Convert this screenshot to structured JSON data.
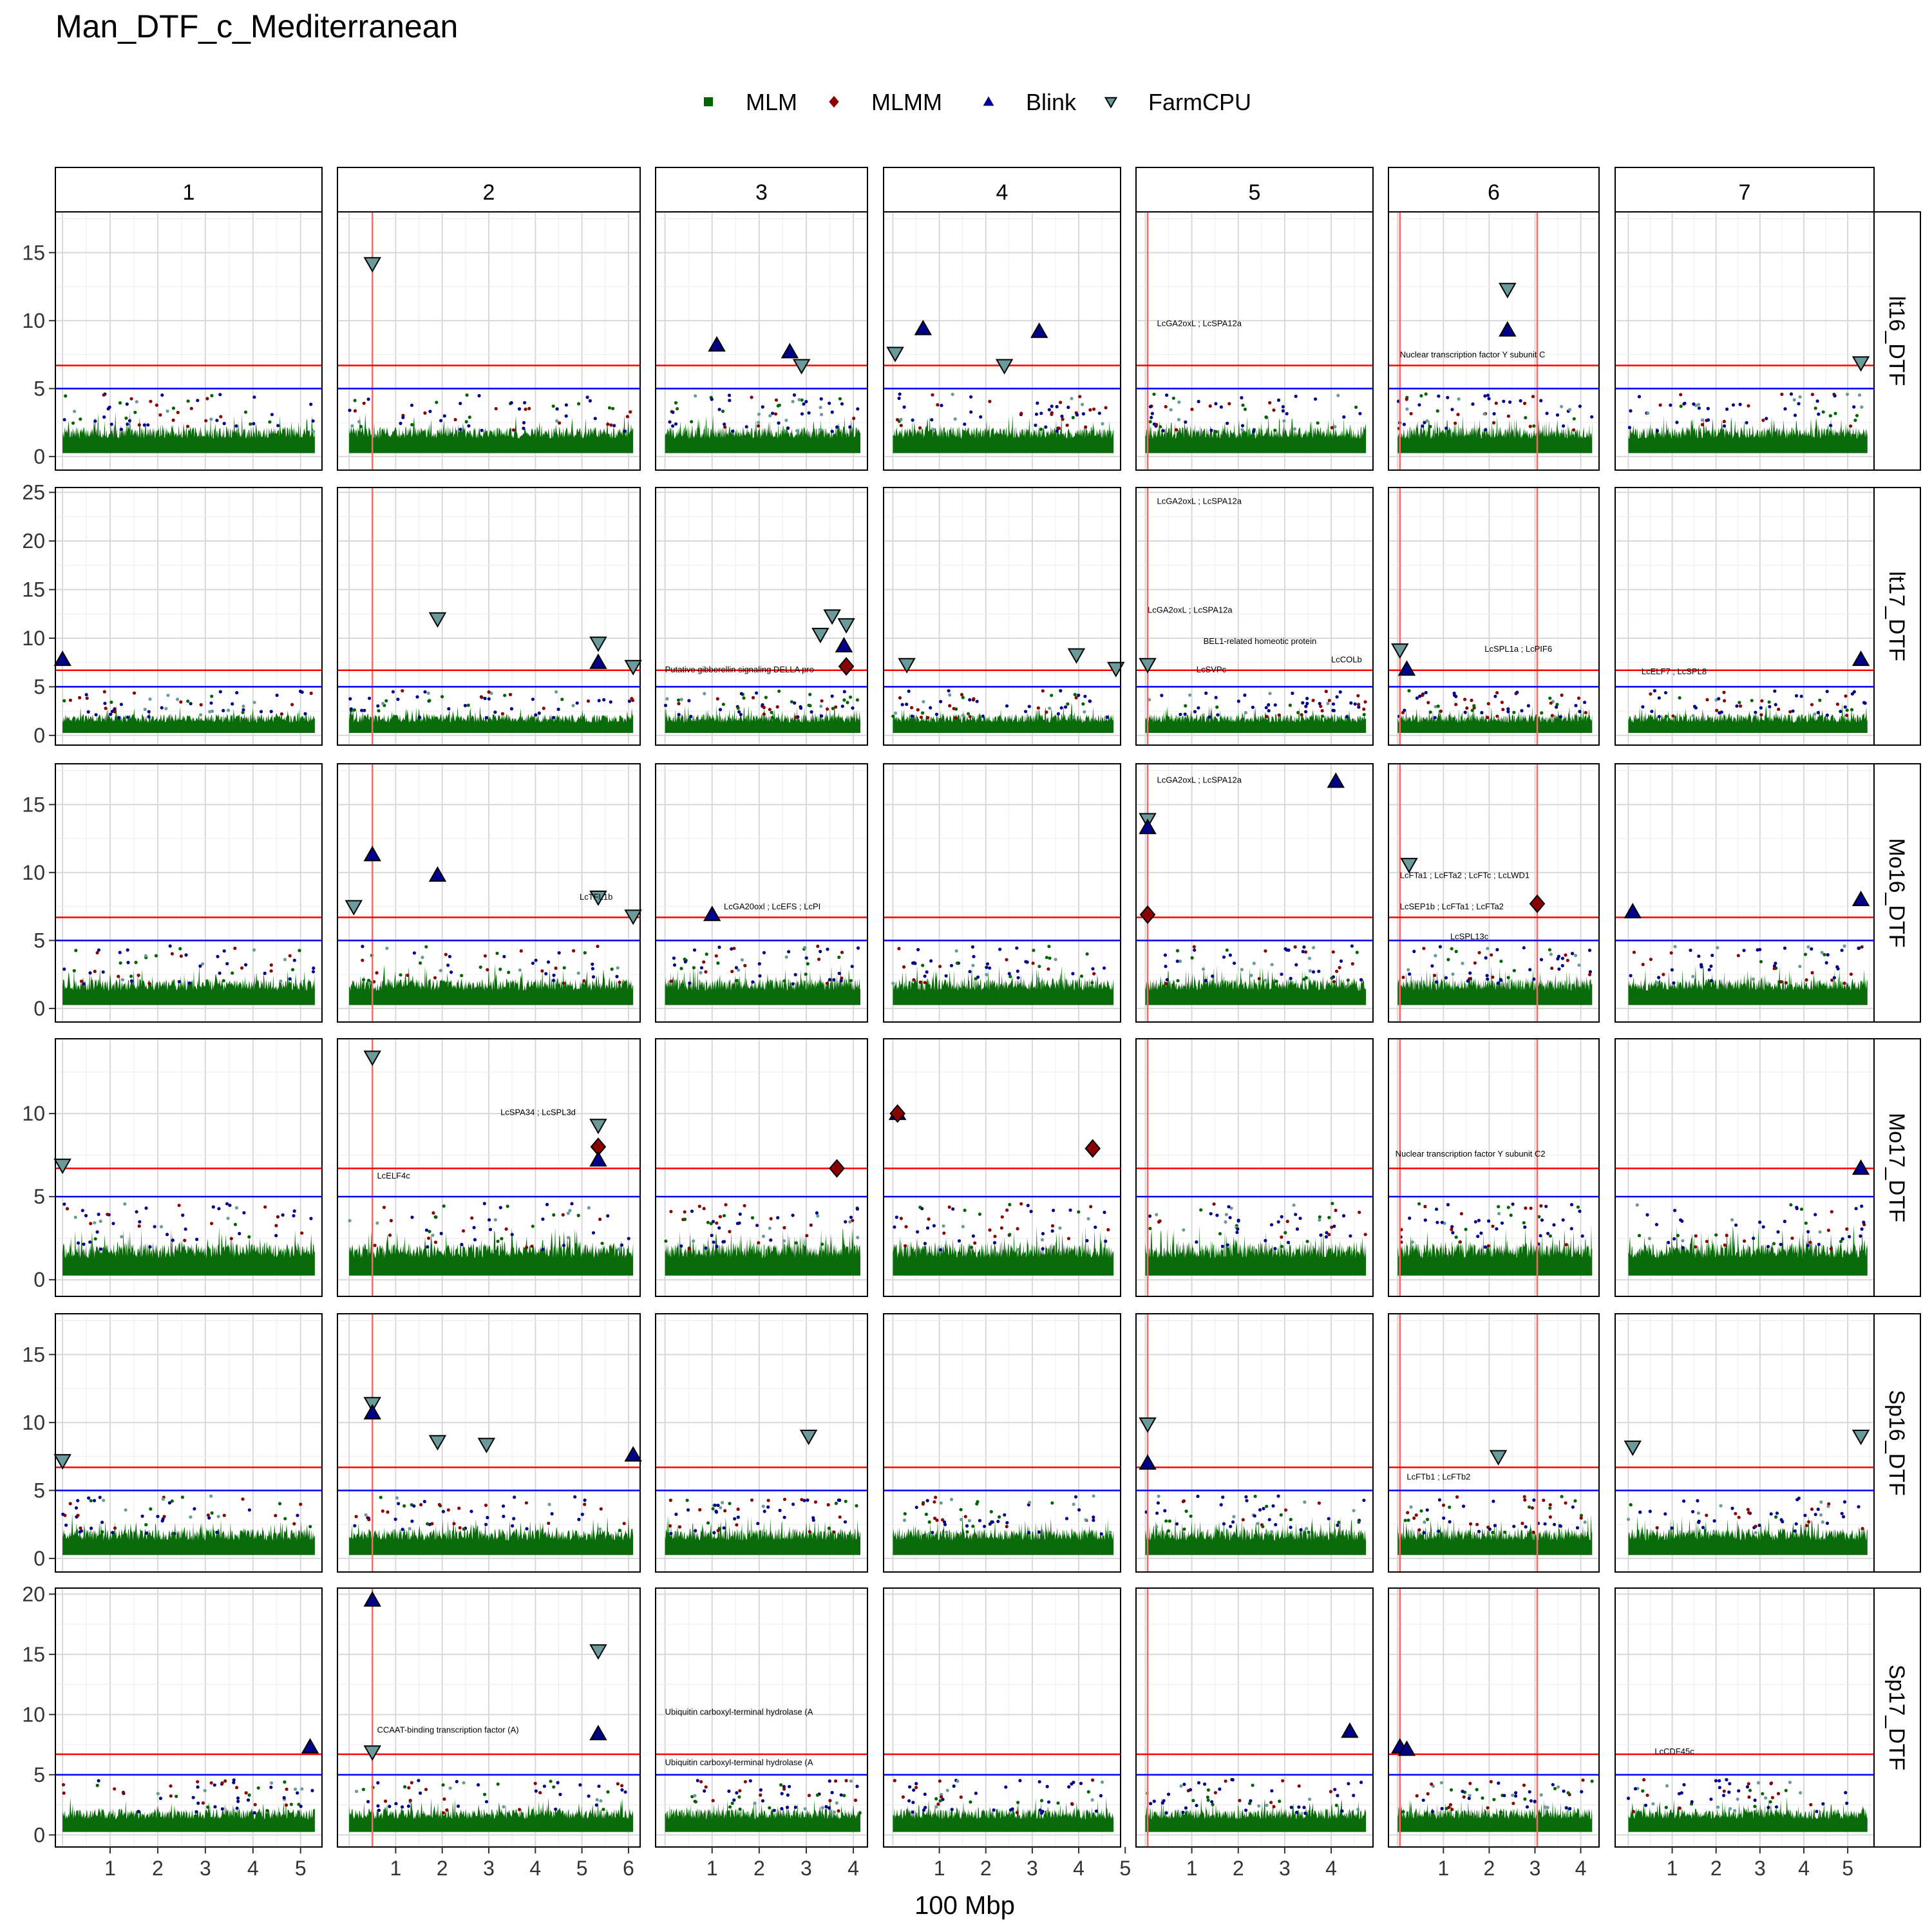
{
  "title": "Man_DTF_c_Mediterranean",
  "chart_data": {
    "type": "scatter",
    "title": "Man_DTF_c_Mediterranean",
    "xlabel": "100 Mbp",
    "ylabel": "",
    "grid": true,
    "legend_position": "top",
    "threshold_red": 6.7,
    "threshold_blue": 5,
    "chromosomes": [
      {
        "label": "1",
        "xlim": [
          -0.15,
          5.45
        ],
        "ticks": [
          1,
          2,
          3,
          4,
          5
        ]
      },
      {
        "label": "2",
        "xlim": [
          -0.25,
          6.25
        ],
        "ticks": [
          1,
          2,
          3,
          4,
          5,
          6
        ]
      },
      {
        "label": "3",
        "xlim": [
          -0.2,
          4.3
        ],
        "ticks": [
          1,
          2,
          3,
          4
        ]
      },
      {
        "label": "4",
        "xlim": [
          -0.2,
          4.9
        ],
        "ticks": [
          1,
          2,
          3,
          4,
          5
        ]
      },
      {
        "label": "5",
        "xlim": [
          -0.2,
          4.9
        ],
        "ticks": [
          1,
          2,
          3,
          4
        ]
      },
      {
        "label": "6",
        "xlim": [
          -0.2,
          4.4
        ],
        "ticks": [
          1,
          2,
          3,
          4
        ]
      },
      {
        "label": "7",
        "xlim": [
          -0.3,
          5.6
        ],
        "ticks": [
          1,
          2,
          3,
          4,
          5
        ]
      }
    ],
    "traits": [
      {
        "label": "lt16_DTF",
        "ylim": [
          -1,
          18
        ],
        "ticks": [
          0,
          5,
          10,
          15
        ]
      },
      {
        "label": "lt17_DTF",
        "ylim": [
          -1,
          25.5
        ],
        "ticks": [
          0,
          5,
          10,
          15,
          20,
          25
        ]
      },
      {
        "label": "Mo16_DTF",
        "ylim": [
          -1,
          18
        ],
        "ticks": [
          0,
          5,
          10,
          15
        ]
      },
      {
        "label": "Mo17_DTF",
        "ylim": [
          -1,
          14.5
        ],
        "ticks": [
          0,
          5,
          10
        ]
      },
      {
        "label": "Sp16_DTF",
        "ylim": [
          -1,
          18
        ],
        "ticks": [
          0,
          5,
          10,
          15
        ]
      },
      {
        "label": "Sp17_DTF",
        "ylim": [
          -1,
          20.5
        ],
        "ticks": [
          0,
          5,
          10,
          15,
          20
        ]
      }
    ],
    "series": [
      {
        "name": "MLM",
        "shape": "square",
        "color": "#006400"
      },
      {
        "name": "MLMM",
        "shape": "diamond",
        "color": "#8b0000"
      },
      {
        "name": "Blink",
        "shape": "triangle-up",
        "color": "#00008b"
      },
      {
        "name": "FarmCPU",
        "shape": "triangle-down",
        "color": "#6b9a9a"
      }
    ],
    "candidate_lines": [
      {
        "trait": 0,
        "chrom": 1,
        "x": 0.5
      },
      {
        "trait": 0,
        "chrom": 4,
        "x": 0.05
      },
      {
        "trait": 0,
        "chrom": 5,
        "x": 0.05
      },
      {
        "trait": 0,
        "chrom": 5,
        "x": 3.05
      },
      {
        "trait": 1,
        "chrom": 1,
        "x": 0.5
      },
      {
        "trait": 1,
        "chrom": 4,
        "x": 0.05
      },
      {
        "trait": 1,
        "chrom": 5,
        "x": 0.05
      },
      {
        "trait": 1,
        "chrom": 5,
        "x": 3.05
      },
      {
        "trait": 2,
        "chrom": 1,
        "x": 0.5
      },
      {
        "trait": 2,
        "chrom": 4,
        "x": 0.05
      },
      {
        "trait": 2,
        "chrom": 5,
        "x": 0.05
      },
      {
        "trait": 2,
        "chrom": 5,
        "x": 3.05
      },
      {
        "trait": 3,
        "chrom": 1,
        "x": 0.5
      },
      {
        "trait": 3,
        "chrom": 4,
        "x": 0.05
      },
      {
        "trait": 3,
        "chrom": 5,
        "x": 0.05
      },
      {
        "trait": 3,
        "chrom": 5,
        "x": 3.05
      },
      {
        "trait": 4,
        "chrom": 1,
        "x": 0.5
      },
      {
        "trait": 4,
        "chrom": 4,
        "x": 0.05
      },
      {
        "trait": 4,
        "chrom": 5,
        "x": 0.05
      },
      {
        "trait": 4,
        "chrom": 5,
        "x": 3.05
      },
      {
        "trait": 5,
        "chrom": 1,
        "x": 0.5
      },
      {
        "trait": 5,
        "chrom": 4,
        "x": 0.05
      },
      {
        "trait": 5,
        "chrom": 5,
        "x": 0.05
      },
      {
        "trait": 5,
        "chrom": 5,
        "x": 3.05
      }
    ],
    "significant_points": [
      {
        "trait": 0,
        "chrom": 1,
        "x": 0.5,
        "y": 14.2,
        "series": "FarmCPU"
      },
      {
        "trait": 0,
        "chrom": 2,
        "x": 1.1,
        "y": 8.2,
        "series": "Blink"
      },
      {
        "trait": 0,
        "chrom": 2,
        "x": 2.65,
        "y": 7.7,
        "series": "Blink"
      },
      {
        "trait": 0,
        "chrom": 2,
        "x": 2.9,
        "y": 6.7,
        "series": "FarmCPU"
      },
      {
        "trait": 0,
        "chrom": 3,
        "x": 0.05,
        "y": 7.6,
        "series": "FarmCPU"
      },
      {
        "trait": 0,
        "chrom": 3,
        "x": 0.65,
        "y": 9.4,
        "series": "Blink"
      },
      {
        "trait": 0,
        "chrom": 3,
        "x": 2.4,
        "y": 6.7,
        "series": "FarmCPU"
      },
      {
        "trait": 0,
        "chrom": 3,
        "x": 3.15,
        "y": 9.2,
        "series": "Blink"
      },
      {
        "trait": 0,
        "chrom": 5,
        "x": 2.4,
        "y": 12.3,
        "series": "FarmCPU"
      },
      {
        "trait": 0,
        "chrom": 5,
        "x": 2.4,
        "y": 9.3,
        "series": "Blink"
      },
      {
        "trait": 0,
        "chrom": 6,
        "x": 5.3,
        "y": 6.9,
        "series": "FarmCPU"
      },
      {
        "trait": 1,
        "chrom": 0,
        "x": 0.0,
        "y": 7.8,
        "series": "Blink"
      },
      {
        "trait": 1,
        "chrom": 1,
        "x": 1.9,
        "y": 12.0,
        "series": "FarmCPU"
      },
      {
        "trait": 1,
        "chrom": 1,
        "x": 5.35,
        "y": 9.5,
        "series": "FarmCPU"
      },
      {
        "trait": 1,
        "chrom": 1,
        "x": 5.35,
        "y": 7.5,
        "series": "Blink"
      },
      {
        "trait": 1,
        "chrom": 1,
        "x": 6.1,
        "y": 7.1,
        "series": "FarmCPU"
      },
      {
        "trait": 1,
        "chrom": 2,
        "x": 3.3,
        "y": 10.4,
        "series": "FarmCPU"
      },
      {
        "trait": 1,
        "chrom": 2,
        "x": 3.55,
        "y": 12.3,
        "series": "FarmCPU"
      },
      {
        "trait": 1,
        "chrom": 2,
        "x": 3.85,
        "y": 11.4,
        "series": "FarmCPU"
      },
      {
        "trait": 1,
        "chrom": 2,
        "x": 3.8,
        "y": 9.2,
        "series": "Blink"
      },
      {
        "trait": 1,
        "chrom": 2,
        "x": 3.85,
        "y": 7.1,
        "series": "MLMM"
      },
      {
        "trait": 1,
        "chrom": 3,
        "x": 0.3,
        "y": 7.3,
        "series": "FarmCPU"
      },
      {
        "trait": 1,
        "chrom": 3,
        "x": 3.95,
        "y": 8.3,
        "series": "FarmCPU"
      },
      {
        "trait": 1,
        "chrom": 3,
        "x": 4.8,
        "y": 6.9,
        "series": "FarmCPU"
      },
      {
        "trait": 1,
        "chrom": 4,
        "x": 0.05,
        "y": 7.3,
        "series": "FarmCPU"
      },
      {
        "trait": 1,
        "chrom": 5,
        "x": 0.05,
        "y": 8.8,
        "series": "FarmCPU"
      },
      {
        "trait": 1,
        "chrom": 5,
        "x": 0.2,
        "y": 6.8,
        "series": "Blink"
      },
      {
        "trait": 1,
        "chrom": 6,
        "x": 5.3,
        "y": 7.8,
        "series": "Blink"
      },
      {
        "trait": 2,
        "chrom": 1,
        "x": 0.1,
        "y": 7.5,
        "series": "FarmCPU"
      },
      {
        "trait": 2,
        "chrom": 1,
        "x": 0.5,
        "y": 11.3,
        "series": "Blink"
      },
      {
        "trait": 2,
        "chrom": 1,
        "x": 1.9,
        "y": 9.8,
        "series": "Blink"
      },
      {
        "trait": 2,
        "chrom": 1,
        "x": 5.35,
        "y": 8.2,
        "series": "FarmCPU"
      },
      {
        "trait": 2,
        "chrom": 1,
        "x": 6.1,
        "y": 6.8,
        "series": "FarmCPU"
      },
      {
        "trait": 2,
        "chrom": 2,
        "x": 1.0,
        "y": 6.9,
        "series": "Blink"
      },
      {
        "trait": 2,
        "chrom": 4,
        "x": 0.05,
        "y": 13.9,
        "series": "FarmCPU"
      },
      {
        "trait": 2,
        "chrom": 4,
        "x": 0.05,
        "y": 13.3,
        "series": "Blink"
      },
      {
        "trait": 2,
        "chrom": 4,
        "x": 0.05,
        "y": 6.9,
        "series": "MLMM"
      },
      {
        "trait": 2,
        "chrom": 4,
        "x": 4.1,
        "y": 16.7,
        "series": "Blink"
      },
      {
        "trait": 2,
        "chrom": 5,
        "x": 0.25,
        "y": 10.6,
        "series": "FarmCPU"
      },
      {
        "trait": 2,
        "chrom": 5,
        "x": 3.05,
        "y": 7.7,
        "series": "MLMM"
      },
      {
        "trait": 2,
        "chrom": 6,
        "x": 0.1,
        "y": 7.1,
        "series": "Blink"
      },
      {
        "trait": 2,
        "chrom": 6,
        "x": 5.3,
        "y": 8.0,
        "series": "Blink"
      },
      {
        "trait": 3,
        "chrom": 0,
        "x": 0.0,
        "y": 6.9,
        "series": "FarmCPU"
      },
      {
        "trait": 3,
        "chrom": 1,
        "x": 0.5,
        "y": 13.4,
        "series": "FarmCPU"
      },
      {
        "trait": 3,
        "chrom": 1,
        "x": 5.35,
        "y": 9.3,
        "series": "FarmCPU"
      },
      {
        "trait": 3,
        "chrom": 1,
        "x": 5.35,
        "y": 8.0,
        "series": "MLMM"
      },
      {
        "trait": 3,
        "chrom": 1,
        "x": 5.35,
        "y": 7.2,
        "series": "Blink"
      },
      {
        "trait": 3,
        "chrom": 2,
        "x": 3.65,
        "y": 6.7,
        "series": "MLMM"
      },
      {
        "trait": 3,
        "chrom": 3,
        "x": 0.1,
        "y": 10.0,
        "series": "Blink"
      },
      {
        "trait": 3,
        "chrom": 3,
        "x": 0.1,
        "y": 10.0,
        "series": "MLMM"
      },
      {
        "trait": 3,
        "chrom": 3,
        "x": 4.3,
        "y": 7.9,
        "series": "MLMM"
      },
      {
        "trait": 3,
        "chrom": 6,
        "x": 5.3,
        "y": 6.7,
        "series": "Blink"
      },
      {
        "trait": 4,
        "chrom": 0,
        "x": 0.0,
        "y": 7.2,
        "series": "FarmCPU"
      },
      {
        "trait": 4,
        "chrom": 1,
        "x": 0.5,
        "y": 11.4,
        "series": "FarmCPU"
      },
      {
        "trait": 4,
        "chrom": 1,
        "x": 0.5,
        "y": 10.7,
        "series": "Blink"
      },
      {
        "trait": 4,
        "chrom": 1,
        "x": 1.9,
        "y": 8.6,
        "series": "FarmCPU"
      },
      {
        "trait": 4,
        "chrom": 1,
        "x": 2.95,
        "y": 8.4,
        "series": "FarmCPU"
      },
      {
        "trait": 4,
        "chrom": 1,
        "x": 6.1,
        "y": 7.6,
        "series": "Blink"
      },
      {
        "trait": 4,
        "chrom": 2,
        "x": 3.05,
        "y": 9.0,
        "series": "FarmCPU"
      },
      {
        "trait": 4,
        "chrom": 4,
        "x": 0.05,
        "y": 9.9,
        "series": "FarmCPU"
      },
      {
        "trait": 4,
        "chrom": 4,
        "x": 0.05,
        "y": 7.0,
        "series": "Blink"
      },
      {
        "trait": 4,
        "chrom": 5,
        "x": 2.2,
        "y": 7.5,
        "series": "FarmCPU"
      },
      {
        "trait": 4,
        "chrom": 6,
        "x": 0.1,
        "y": 8.2,
        "series": "FarmCPU"
      },
      {
        "trait": 4,
        "chrom": 6,
        "x": 5.3,
        "y": 9.0,
        "series": "FarmCPU"
      },
      {
        "trait": 5,
        "chrom": 0,
        "x": 5.2,
        "y": 7.3,
        "series": "Blink"
      },
      {
        "trait": 5,
        "chrom": 1,
        "x": 0.5,
        "y": 19.5,
        "series": "Blink"
      },
      {
        "trait": 5,
        "chrom": 1,
        "x": 0.5,
        "y": 6.9,
        "series": "FarmCPU"
      },
      {
        "trait": 5,
        "chrom": 1,
        "x": 5.35,
        "y": 15.3,
        "series": "FarmCPU"
      },
      {
        "trait": 5,
        "chrom": 1,
        "x": 5.35,
        "y": 8.4,
        "series": "Blink"
      },
      {
        "trait": 5,
        "chrom": 4,
        "x": 4.4,
        "y": 8.6,
        "series": "Blink"
      },
      {
        "trait": 5,
        "chrom": 5,
        "x": 0.05,
        "y": 7.3,
        "series": "Blink"
      },
      {
        "trait": 5,
        "chrom": 5,
        "x": 0.2,
        "y": 7.1,
        "series": "Blink"
      }
    ],
    "annotations": [
      {
        "trait": 0,
        "chrom": 4,
        "x": 0.25,
        "y": 9.6,
        "text": "LcGA2oxL ; LcSPA12a"
      },
      {
        "trait": 0,
        "chrom": 5,
        "x": 0.05,
        "y": 7.3,
        "text": "Nuclear transcription factor Y subunit C"
      },
      {
        "trait": 1,
        "chrom": 2,
        "x": 0.0,
        "y": 6.5,
        "text": "Putative gibberellin signaling DELLA pro"
      },
      {
        "trait": 1,
        "chrom": 4,
        "x": 0.25,
        "y": 23.8,
        "text": "LcGA2oxL ; LcSPA12a"
      },
      {
        "trait": 1,
        "chrom": 4,
        "x": 0.05,
        "y": 12.6,
        "text": "LcGA2oxL ; LcSPA12a"
      },
      {
        "trait": 1,
        "chrom": 4,
        "x": 1.25,
        "y": 9.4,
        "text": "BEL1-related homeotic protein"
      },
      {
        "trait": 1,
        "chrom": 4,
        "x": 1.1,
        "y": 6.5,
        "text": "LcSVPc"
      },
      {
        "trait": 1,
        "chrom": 4,
        "x": 4.0,
        "y": 7.5,
        "text": "LcCOLb"
      },
      {
        "trait": 1,
        "chrom": 5,
        "x": 1.9,
        "y": 8.6,
        "text": "LcSPL1a ; LcPIF6"
      },
      {
        "trait": 1,
        "chrom": 6,
        "x": 0.3,
        "y": 6.3,
        "text": "LcELF7 ; LcSPL8"
      },
      {
        "trait": 2,
        "chrom": 1,
        "x": 4.95,
        "y": 8.0,
        "text": "LcTFL1b"
      },
      {
        "trait": 2,
        "chrom": 2,
        "x": 1.25,
        "y": 7.3,
        "text": "LcGA20oxl ; LcEFS ; LcPI"
      },
      {
        "trait": 2,
        "chrom": 4,
        "x": 0.25,
        "y": 16.6,
        "text": "LcGA2oxL ; LcSPA12a"
      },
      {
        "trait": 2,
        "chrom": 5,
        "x": 0.05,
        "y": 9.6,
        "text": "LcFTa1 ; LcFTa2 ; LcFTc ; LcLWD1"
      },
      {
        "trait": 2,
        "chrom": 5,
        "x": 0.05,
        "y": 7.3,
        "text": "LcSEP1b ; LcFTa1 ; LcFTa2"
      },
      {
        "trait": 2,
        "chrom": 5,
        "x": 1.15,
        "y": 5.1,
        "text": "LcSPL13c"
      },
      {
        "trait": 3,
        "chrom": 1,
        "x": 3.25,
        "y": 9.9,
        "text": "LcSPA34 ; LcSPL3d"
      },
      {
        "trait": 3,
        "chrom": 1,
        "x": 0.6,
        "y": 6.1,
        "text": "LcELF4c"
      },
      {
        "trait": 3,
        "chrom": 5,
        "x": -0.05,
        "y": 7.4,
        "text": "Nuclear transcription factor Y subunit C2"
      },
      {
        "trait": 4,
        "chrom": 5,
        "x": 0.2,
        "y": 5.8,
        "text": "LcFTb1 ; LcFTb2"
      },
      {
        "trait": 5,
        "chrom": 1,
        "x": 0.6,
        "y": 8.5,
        "text": "CCAAT-binding transcription factor (A)"
      },
      {
        "trait": 5,
        "chrom": 2,
        "x": 0.0,
        "y": 10.0,
        "text": "Ubiquitin carboxyl-terminal hydrolase (A"
      },
      {
        "trait": 5,
        "chrom": 2,
        "x": 0.0,
        "y": 5.8,
        "text": "Ubiquitin carboxyl-terminal hydrolase (A"
      },
      {
        "trait": 5,
        "chrom": 6,
        "x": 0.6,
        "y": 6.7,
        "text": "LcCDF45c"
      }
    ]
  }
}
